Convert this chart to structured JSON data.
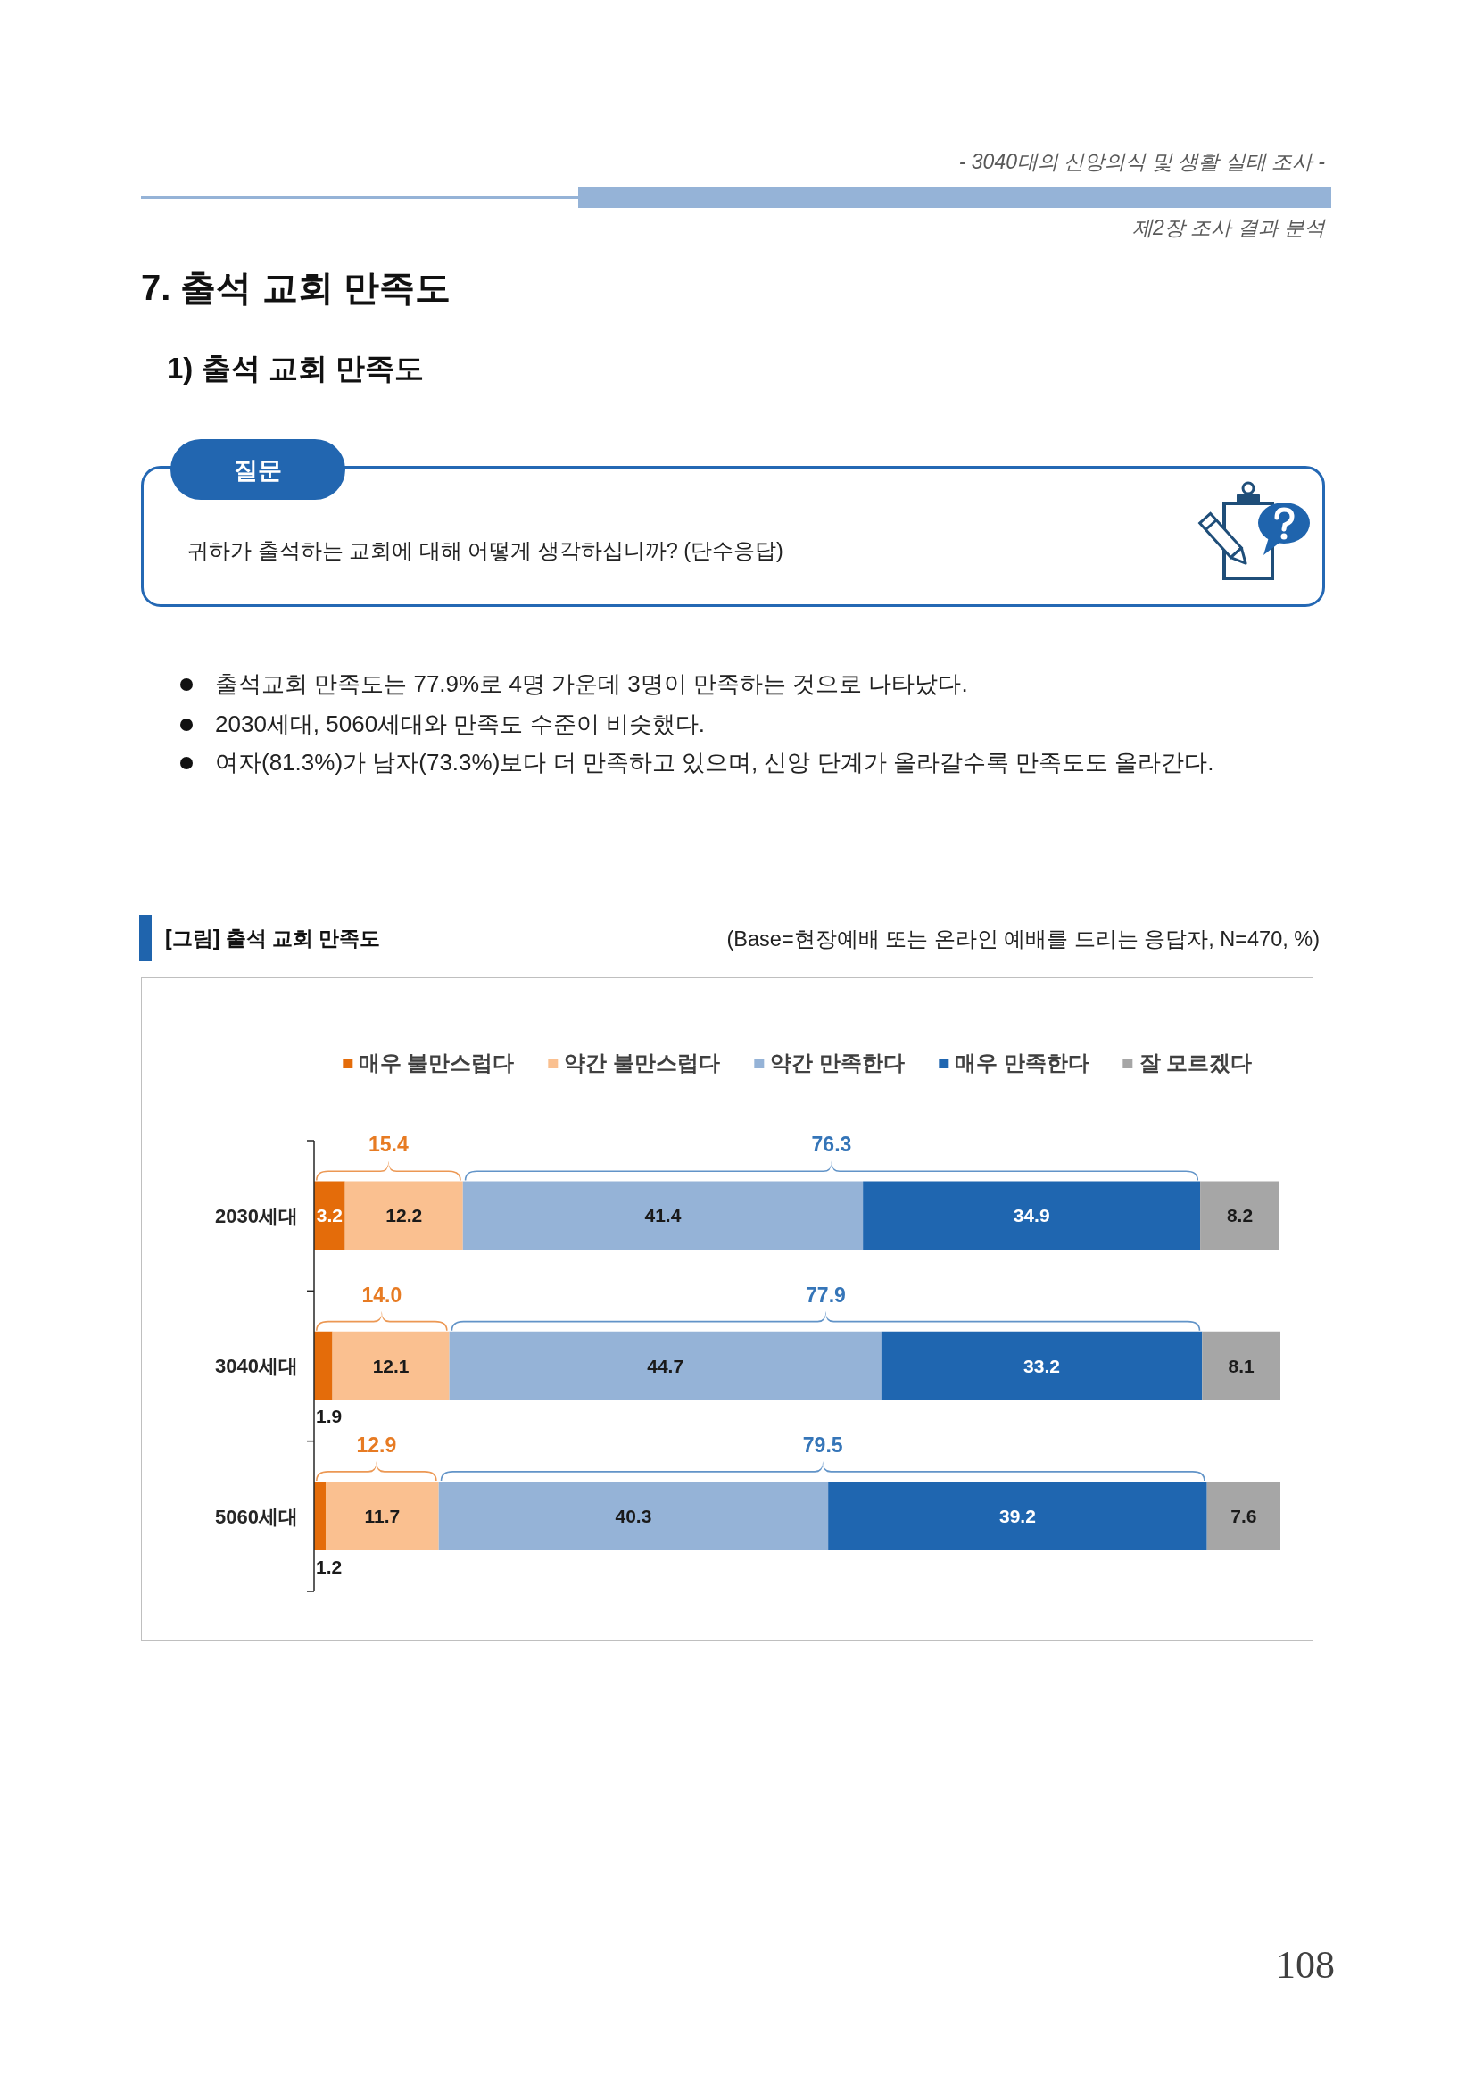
{
  "chart_data": {
    "type": "bar",
    "orientation": "horizontal",
    "stacked": true,
    "title": "[그림] 출석 교회 만족도",
    "subtitle": "(Base=현장예배 또는 온라인 예배를 드리는 응답자, N=470, %)",
    "categories": [
      "2030세대",
      "3040세대",
      "5060세대"
    ],
    "series": [
      {
        "name": "매우 불만스럽다",
        "color": "#e46c0a",
        "values": [
          3.2,
          1.9,
          1.2
        ]
      },
      {
        "name": "약간 불만스럽다",
        "color": "#fac090",
        "values": [
          12.2,
          12.1,
          11.7
        ]
      },
      {
        "name": "약간 만족한다",
        "color": "#95b3d7",
        "values": [
          41.4,
          44.7,
          40.3
        ]
      },
      {
        "name": "매우 만족한다",
        "color": "#1f66b0",
        "values": [
          34.9,
          33.2,
          39.2
        ]
      },
      {
        "name": "잘 모르겠다",
        "color": "#a6a6a6",
        "values": [
          8.2,
          8.1,
          7.6
        ]
      }
    ],
    "data_labels": true,
    "legend": "top",
    "tick_labels": "y",
    "annotations": [
      "- 3040대의 신앙의식 및 생활 실태 조사 -",
      "제2장 조사 결과 분석",
      "7. 출석 교회 만족도",
      "1) 출석 교회 만족도",
      "질문",
      "귀하가 출석하는 교회에 대해 어떻게 생각하십니까? (단수응답)",
      "출석교회 만족도는 77.9%로 4명 가운데 3명이 만족하는 것으로 나타났다.",
      "2030세대, 5060세대와 만족도 수준이 비슷했다.",
      "여자(81.3%)가 남자(73.3%)보다 더 만족하고 있으며, 신앙 단계가 올라갈수록 만족도도 올라간다.",
      "108",
      "15.4",
      "76.3",
      "14.0",
      "77.9",
      "12.9",
      "79.5"
    ]
  }
}
